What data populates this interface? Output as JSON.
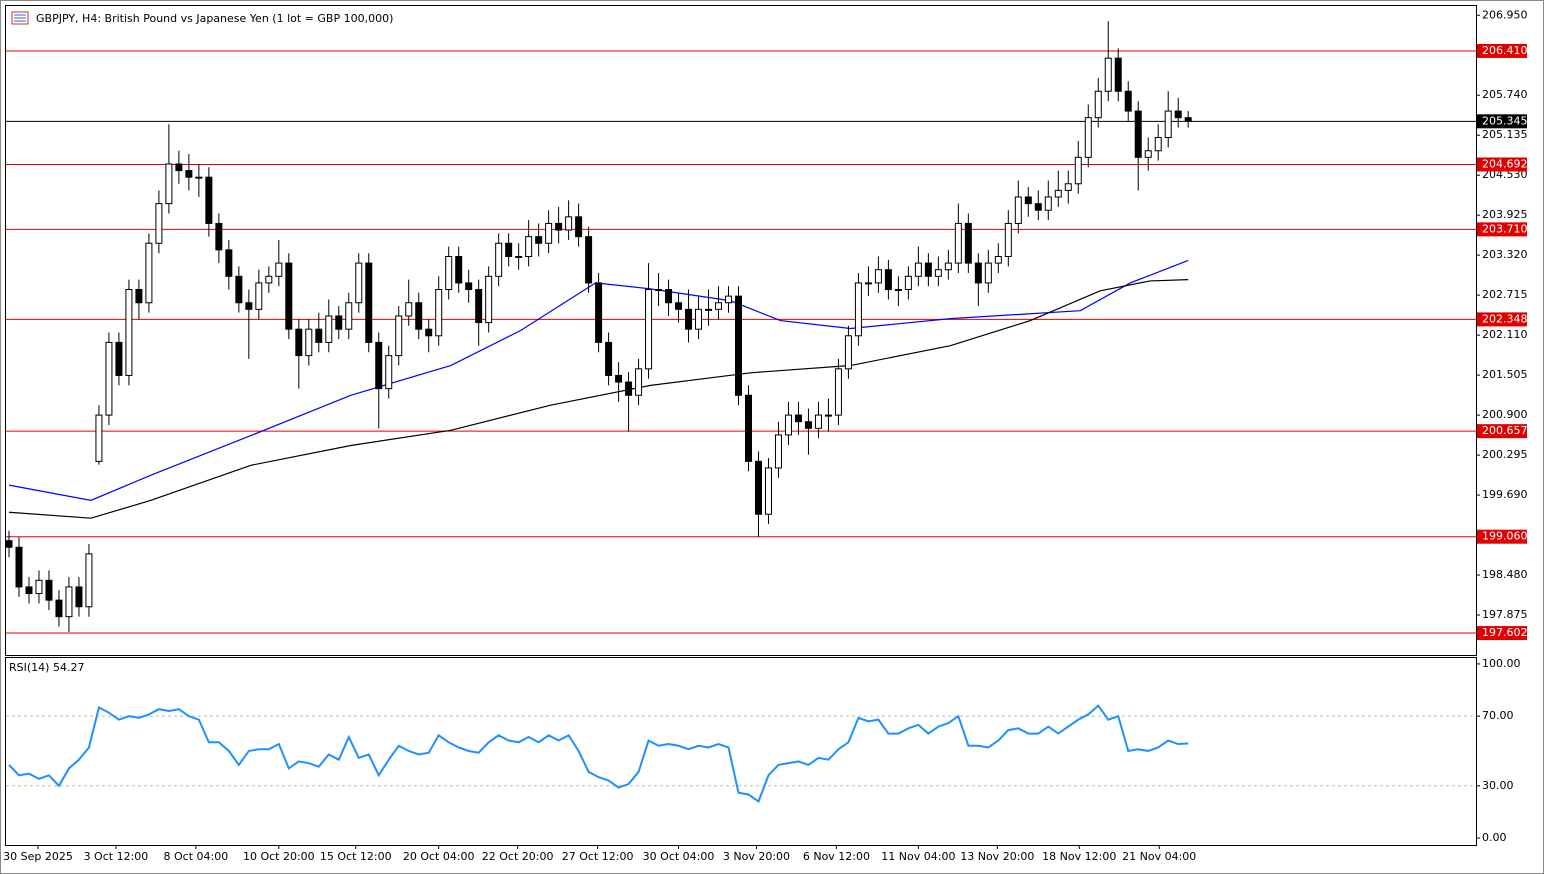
{
  "chart_data": [
    {
      "type": "candlestick",
      "title": "GBPJPY, H4:  British Pound vs Japanese Yen (1 lot = GBP 100,000)",
      "xlim": [
        -0.3,
        146.8
      ],
      "ylim": [
        197.27,
        207.09
      ],
      "yticks": [
        {
          "value": 206.95,
          "label": "206.950"
        },
        {
          "value": 205.74,
          "label": "205.740"
        },
        {
          "value": 205.135,
          "label": "205.135"
        },
        {
          "value": 204.53,
          "label": "204.530"
        },
        {
          "value": 203.925,
          "label": "203.925"
        },
        {
          "value": 203.32,
          "label": "203.320"
        },
        {
          "value": 202.715,
          "label": "202.715"
        },
        {
          "value": 202.11,
          "label": "202.110"
        },
        {
          "value": 201.505,
          "label": "201.505"
        },
        {
          "value": 200.9,
          "label": "200.900"
        },
        {
          "value": 200.295,
          "label": "200.295"
        },
        {
          "value": 199.69,
          "label": "199.690"
        },
        {
          "value": 198.48,
          "label": "198.480"
        },
        {
          "value": 197.875,
          "label": "197.875"
        }
      ],
      "xticks": [
        {
          "value": 2.9,
          "label": "30 Sep 2025"
        },
        {
          "value": 10.7,
          "label": "3 Oct 12:00"
        },
        {
          "value": 18.7,
          "label": "8 Oct 04:00"
        },
        {
          "value": 27,
          "label": "10 Oct 20:00"
        },
        {
          "value": 34.7,
          "label": "15 Oct 12:00"
        },
        {
          "value": 43,
          "label": "20 Oct 04:00"
        },
        {
          "value": 50.9,
          "label": "22 Oct 20:00"
        },
        {
          "value": 58.9,
          "label": "27 Oct 12:00"
        },
        {
          "value": 67,
          "label": "30 Oct 04:00"
        },
        {
          "value": 74.8,
          "label": "3 Nov 20:00"
        },
        {
          "value": 82.8,
          "label": "6 Nov 12:00"
        },
        {
          "value": 91,
          "label": "11 Nov 04:00"
        },
        {
          "value": 98.9,
          "label": "13 Nov 20:00"
        },
        {
          "value": 107.1,
          "label": "18 Nov 12:00"
        },
        {
          "value": 115.1,
          "label": "21 Nov 04:00"
        }
      ],
      "levels_color": "#e00000",
      "levels": [
        {
          "value": 206.41,
          "label": "206.410"
        },
        {
          "value": 204.692,
          "label": "204.692"
        },
        {
          "value": 203.71,
          "label": "203.710"
        },
        {
          "value": 202.348,
          "label": "202.348"
        },
        {
          "value": 200.657,
          "label": "200.657"
        },
        {
          "value": 199.06,
          "label": "199.060"
        },
        {
          "value": 197.602,
          "label": "197.602"
        }
      ],
      "current_price": 205.345,
      "open": [
        199.0,
        198.9,
        198.3,
        198.2,
        198.4,
        198.1,
        197.85,
        198.3,
        198.0,
        200.2,
        200.9,
        202.0,
        201.5,
        202.8,
        202.6,
        203.5,
        204.1,
        204.7,
        204.6,
        204.5,
        204.5,
        203.8,
        203.4,
        203.0,
        202.6,
        202.5,
        202.9,
        203.0,
        203.2,
        202.2,
        201.8,
        202.2,
        202.0,
        202.4,
        202.2,
        202.6,
        203.2,
        202.0,
        201.3,
        201.8,
        202.4,
        202.6,
        202.2,
        202.1,
        202.8,
        203.3,
        202.9,
        202.8,
        202.3,
        203.0,
        203.5,
        203.3,
        203.3,
        203.6,
        203.5,
        203.8,
        203.7,
        203.9,
        203.6,
        202.9,
        202.0,
        201.5,
        201.4,
        201.2,
        201.6,
        202.8,
        202.8,
        202.6,
        202.5,
        202.2,
        202.5,
        202.5,
        202.6,
        202.7,
        201.2,
        200.2,
        199.4,
        200.1,
        200.6,
        200.9,
        200.8,
        200.7,
        200.9,
        200.9,
        201.6,
        202.1,
        202.9,
        202.9,
        203.1,
        202.8,
        202.8,
        203.0,
        203.2,
        203.0,
        203.1,
        203.2,
        203.8,
        203.2,
        202.9,
        203.2,
        203.3,
        203.8,
        204.2,
        204.1,
        204.0,
        204.2,
        204.3,
        204.4,
        204.8,
        205.4,
        205.8,
        206.3,
        205.8,
        205.5,
        204.8,
        204.9,
        205.1,
        205.5,
        205.4
      ],
      "high": [
        199.15,
        199.05,
        198.45,
        198.55,
        198.55,
        198.25,
        198.45,
        198.45,
        198.95,
        201.05,
        202.15,
        202.15,
        202.95,
        202.95,
        203.65,
        204.3,
        205.3,
        204.9,
        204.85,
        204.7,
        204.65,
        203.95,
        203.55,
        203.15,
        202.8,
        203.1,
        203.15,
        203.55,
        203.35,
        202.35,
        202.35,
        202.45,
        202.65,
        202.55,
        202.75,
        203.35,
        203.35,
        202.15,
        201.95,
        202.55,
        202.95,
        202.75,
        202.35,
        203.0,
        203.45,
        203.45,
        203.1,
        202.95,
        203.15,
        203.65,
        203.65,
        203.5,
        203.85,
        203.8,
        204.0,
        204.05,
        204.15,
        204.1,
        203.75,
        203.05,
        202.15,
        201.7,
        201.55,
        201.75,
        203.2,
        203.05,
        202.95,
        202.75,
        202.8,
        202.7,
        202.8,
        202.85,
        202.85,
        202.85,
        201.35,
        200.35,
        200.25,
        200.8,
        201.1,
        201.1,
        201.0,
        201.1,
        201.15,
        201.75,
        202.25,
        203.05,
        203.15,
        203.3,
        203.25,
        203.0,
        203.15,
        203.45,
        203.35,
        203.3,
        203.4,
        204.1,
        203.95,
        203.35,
        203.4,
        203.5,
        204.0,
        204.45,
        204.35,
        204.3,
        204.45,
        204.6,
        204.6,
        205.05,
        205.6,
        206.0,
        206.86,
        206.45,
        205.95,
        205.65,
        205.1,
        205.3,
        205.8,
        205.7,
        205.5
      ],
      "low": [
        198.75,
        198.15,
        198.05,
        198.05,
        197.95,
        197.7,
        197.62,
        197.85,
        197.85,
        200.15,
        200.75,
        201.35,
        201.35,
        202.35,
        202.45,
        203.35,
        203.95,
        204.4,
        204.3,
        204.2,
        203.6,
        203.2,
        202.8,
        202.45,
        201.75,
        202.35,
        202.75,
        202.85,
        202.05,
        201.3,
        201.65,
        201.85,
        201.85,
        202.05,
        202.05,
        202.45,
        201.85,
        200.7,
        201.15,
        201.65,
        202.25,
        202.05,
        201.85,
        201.95,
        202.65,
        202.75,
        202.6,
        201.95,
        202.15,
        202.85,
        203.15,
        203.1,
        203.15,
        203.3,
        203.35,
        203.5,
        203.55,
        203.45,
        202.75,
        201.85,
        201.35,
        201.1,
        200.65,
        201.05,
        201.45,
        202.55,
        202.4,
        202.3,
        202.0,
        202.05,
        202.25,
        202.35,
        202.45,
        201.05,
        200.05,
        199.06,
        199.25,
        199.95,
        200.45,
        200.6,
        200.3,
        200.55,
        200.65,
        200.75,
        201.45,
        201.95,
        202.7,
        202.75,
        202.65,
        202.55,
        202.65,
        202.85,
        202.85,
        202.85,
        202.95,
        203.05,
        203.05,
        202.55,
        202.75,
        203.05,
        203.15,
        203.65,
        203.9,
        203.85,
        203.85,
        204.05,
        204.1,
        204.25,
        204.65,
        205.25,
        205.65,
        205.65,
        205.35,
        204.3,
        204.6,
        204.75,
        204.95,
        205.25,
        205.25
      ],
      "close": [
        198.9,
        198.3,
        198.2,
        198.4,
        198.1,
        197.85,
        198.3,
        198.0,
        198.8,
        200.9,
        202.0,
        201.5,
        202.8,
        202.6,
        203.5,
        204.1,
        204.7,
        204.6,
        204.5,
        204.5,
        203.8,
        203.4,
        203.0,
        202.6,
        202.5,
        202.9,
        203.0,
        203.2,
        202.2,
        201.8,
        202.2,
        202.0,
        202.4,
        202.2,
        202.6,
        203.2,
        202.0,
        201.3,
        201.8,
        202.4,
        202.6,
        202.2,
        202.1,
        202.8,
        203.3,
        202.9,
        202.8,
        202.3,
        203.0,
        203.5,
        203.3,
        203.3,
        203.6,
        203.5,
        203.8,
        203.7,
        203.9,
        203.6,
        202.9,
        202.0,
        201.5,
        201.4,
        201.2,
        201.6,
        202.8,
        202.8,
        202.6,
        202.5,
        202.2,
        202.5,
        202.5,
        202.6,
        202.7,
        201.2,
        200.2,
        199.4,
        200.1,
        200.6,
        200.9,
        200.8,
        200.7,
        200.9,
        200.9,
        201.6,
        202.1,
        202.9,
        202.9,
        203.1,
        202.8,
        202.8,
        203.0,
        203.2,
        203.0,
        203.1,
        203.2,
        203.8,
        203.2,
        202.9,
        203.2,
        203.3,
        203.8,
        204.2,
        204.1,
        204.0,
        204.2,
        204.3,
        204.4,
        204.8,
        205.4,
        205.8,
        206.3,
        205.8,
        205.5,
        204.8,
        204.9,
        205.1,
        205.5,
        205.4,
        205.35
      ],
      "overlays": [
        {
          "color": "#0000ff",
          "x": [
            0,
            8.2,
            14.2,
            24.2,
            34.2,
            44.2,
            51.2,
            58.7,
            64.2,
            72.2,
            77.2,
            84.2,
            94.2,
            107.2,
            112.2,
            118
          ],
          "values": [
            199.84,
            199.61,
            199.99,
            200.59,
            201.2,
            201.65,
            202.18,
            202.9,
            202.81,
            202.63,
            202.33,
            202.21,
            202.36,
            202.48,
            202.9,
            203.24
          ]
        },
        {
          "color": "#000000",
          "x": [
            0,
            8.2,
            14.2,
            24.2,
            34.2,
            44.2,
            54.2,
            64.2,
            74.2,
            84.2,
            94.2,
            102.2,
            109.2,
            114.2,
            118
          ],
          "values": [
            199.43,
            199.34,
            199.61,
            200.14,
            200.44,
            200.67,
            201.05,
            201.35,
            201.54,
            201.65,
            201.95,
            202.33,
            202.78,
            202.93,
            202.95
          ]
        }
      ]
    },
    {
      "type": "line",
      "title": "RSI(14) 54.27",
      "color": "#1e90ff",
      "xlim": [
        -0.3,
        146.8
      ],
      "ylim": [
        -4,
        103.4
      ],
      "yticks": [
        {
          "value": 100,
          "label": "100.00"
        },
        {
          "value": 70,
          "label": "70.00"
        },
        {
          "value": 30,
          "label": "30.00"
        },
        {
          "value": 0,
          "label": "0.00"
        }
      ],
      "guides": [
        70,
        30
      ],
      "values": [
        42,
        36,
        37,
        34,
        36,
        30,
        40,
        45,
        52,
        75,
        72,
        68,
        70,
        69,
        71,
        74,
        73,
        74,
        70,
        68,
        55,
        55,
        50,
        42,
        50,
        51,
        51,
        54,
        40,
        44,
        43,
        41,
        48,
        45,
        58,
        46,
        48,
        36,
        45,
        53,
        50,
        48,
        49,
        59,
        55,
        52,
        50,
        49,
        55,
        59,
        56,
        55,
        58,
        55,
        59,
        56,
        59,
        50,
        38,
        35,
        33,
        29,
        31,
        38,
        56,
        53,
        54,
        53,
        51,
        53,
        52,
        54,
        52,
        26,
        25,
        21,
        36,
        42,
        43,
        44,
        42,
        46,
        45,
        51,
        55,
        69,
        67,
        68,
        60,
        60,
        63,
        65,
        60,
        64,
        66,
        70,
        53,
        53,
        52,
        56,
        62,
        63,
        60,
        60,
        64,
        60,
        64,
        68,
        71,
        76,
        68,
        70,
        50,
        51,
        50,
        52,
        56,
        54,
        54.27
      ]
    }
  ]
}
